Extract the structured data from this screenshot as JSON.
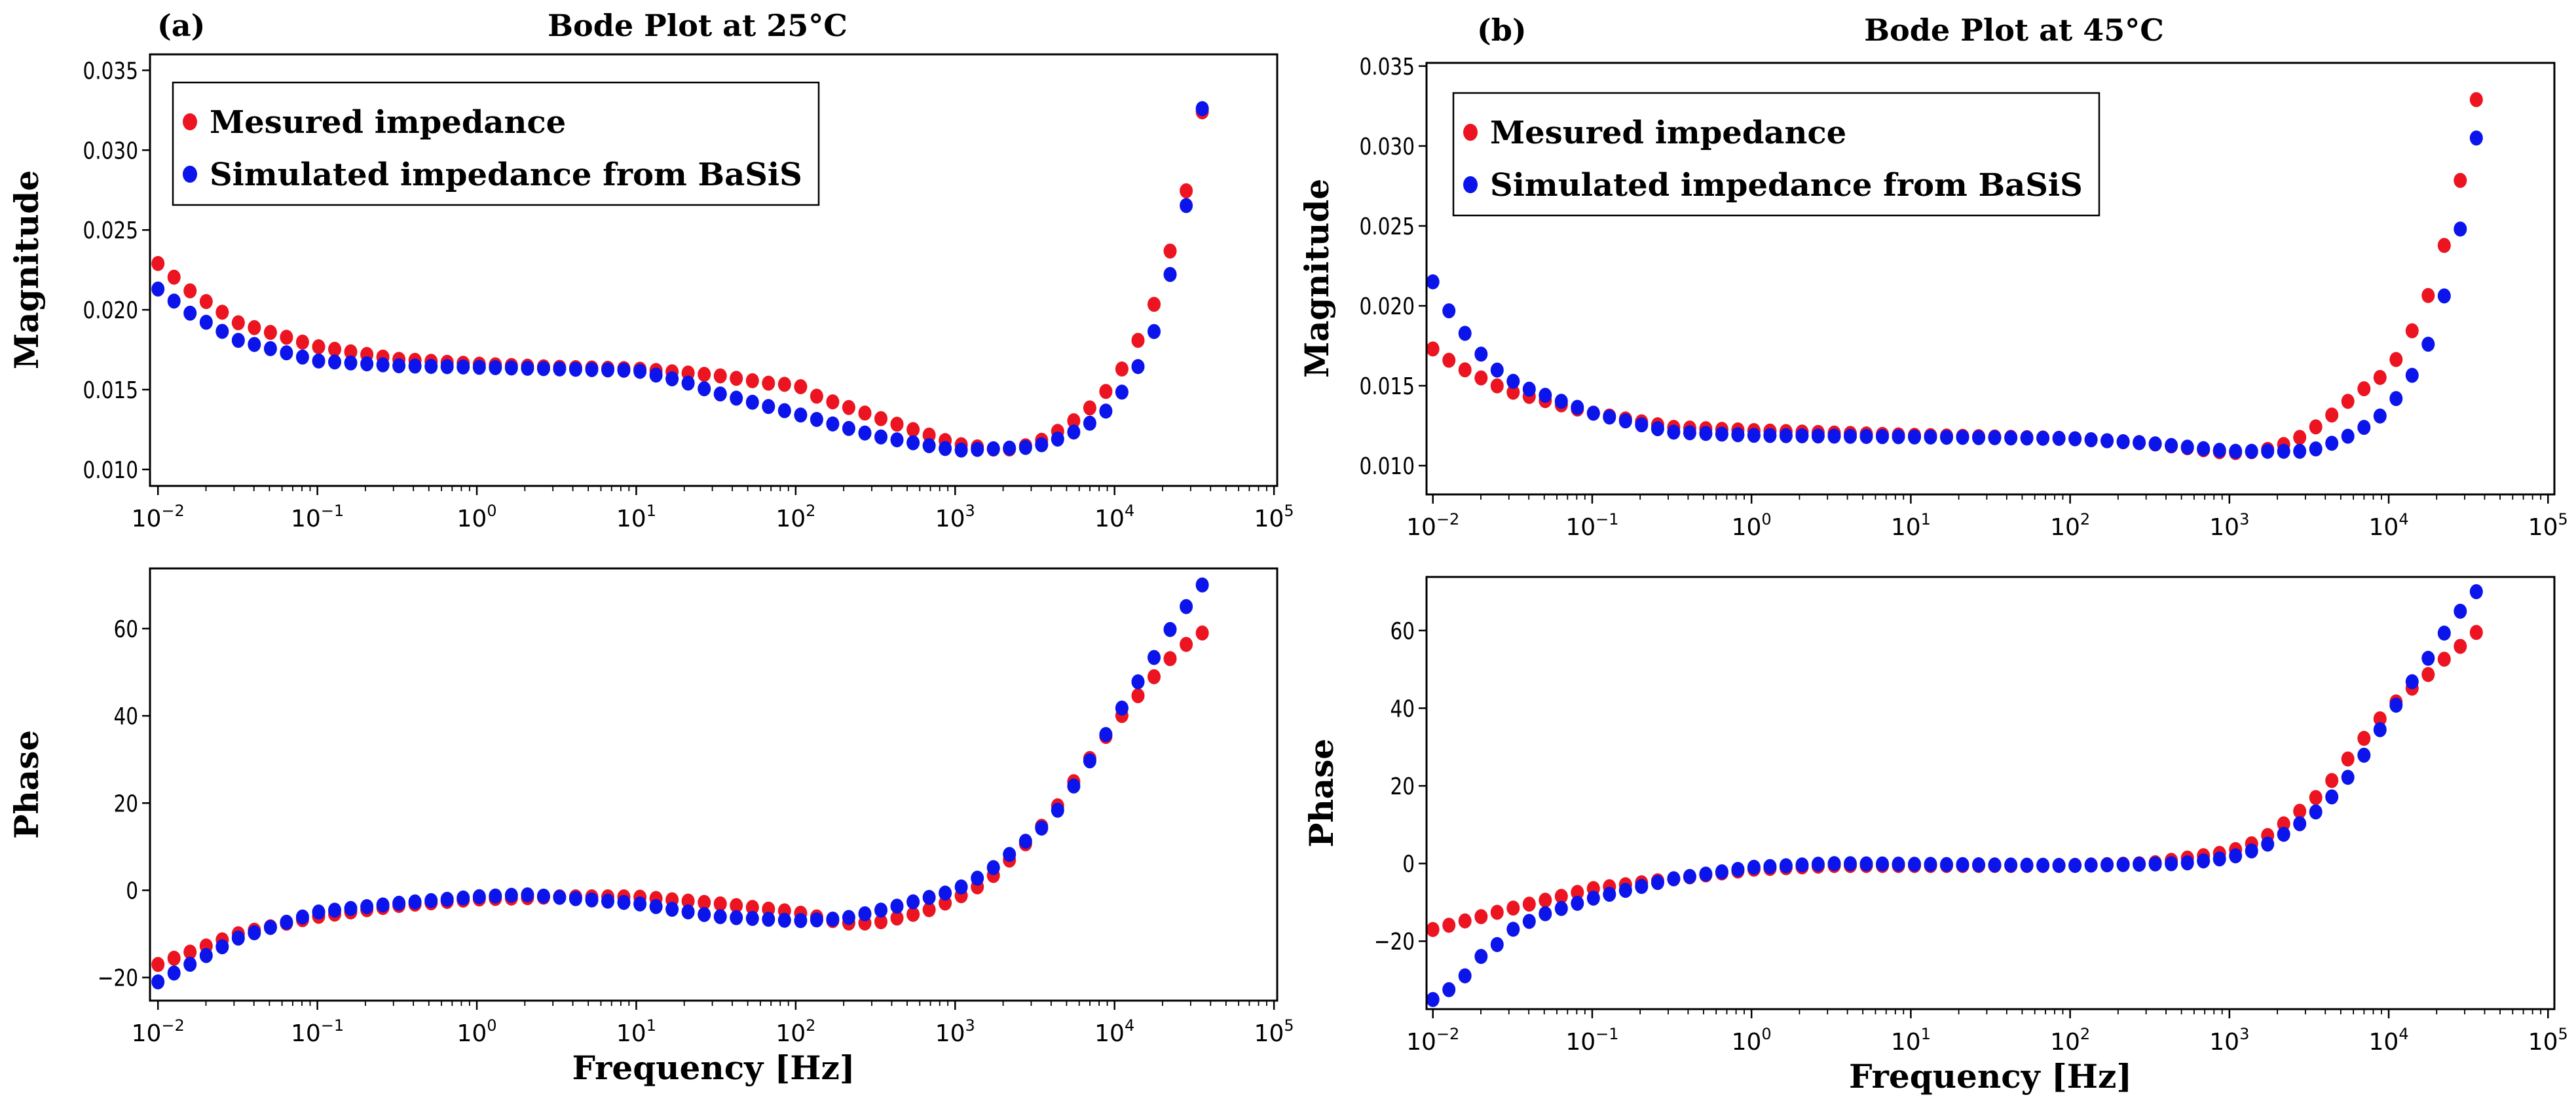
{
  "figure": {
    "panels": [
      {
        "label": "(a)",
        "title": "Bode Plot at 25°C"
      },
      {
        "label": "(b)",
        "title": "Bode Plot at 45°C"
      }
    ],
    "colors": {
      "measured": "#ec1420",
      "simulated": "#0c14ec"
    }
  },
  "chart_data": [
    {
      "type": "scatter",
      "panel": "a",
      "title": "Bode Plot at 25°C",
      "xlabel": "",
      "ylabel": "Magnitude",
      "xscale": "log",
      "xlim_log10": [
        -2.05,
        5.02
      ],
      "ylim": [
        0.00897,
        0.036
      ],
      "yticks": [
        0.01,
        0.015,
        0.02,
        0.025,
        0.03,
        0.035
      ],
      "ytick_labels": [
        "0.010",
        "0.015",
        "0.020",
        "0.025",
        "0.030",
        "0.035"
      ],
      "xtick_exponents": [
        "−2",
        "−1",
        "0",
        "1",
        "2",
        "3",
        "4",
        "5"
      ],
      "legend": {
        "placement": "upper-left",
        "entries": [
          "Mesured impedance",
          "Simulated impedance from BaSiS"
        ]
      },
      "n_points": 66,
      "x_range_log10": [
        -2,
        4.55
      ],
      "series": [
        {
          "name": "Mesured impedance",
          "color": "measured",
          "knots": [
            [
              -2,
              0.0229
            ],
            [
              -1.8,
              0.0212
            ],
            [
              -1.5,
              0.0192
            ],
            [
              -1,
              0.0177
            ],
            [
              -0.5,
              0.0169
            ],
            [
              0,
              0.0166
            ],
            [
              0.5,
              0.0164
            ],
            [
              1,
              0.0163
            ],
            [
              1.5,
              0.0159
            ],
            [
              1.9,
              0.0153
            ],
            [
              2.0,
              0.0154
            ],
            [
              2.1,
              0.0147
            ],
            [
              2.5,
              0.0133
            ],
            [
              3.0,
              0.0116
            ],
            [
              3.3,
              0.0112
            ],
            [
              3.5,
              0.0116
            ],
            [
              3.7,
              0.0127
            ],
            [
              3.9,
              0.0143
            ],
            [
              4.0,
              0.0156
            ],
            [
              4.1,
              0.0171
            ],
            [
              4.2,
              0.0192
            ],
            [
              4.3,
              0.0216
            ],
            [
              4.37,
              0.0246
            ],
            [
              4.47,
              0.0282
            ],
            [
              4.55,
              0.0324
            ]
          ]
        },
        {
          "name": "Simulated impedance from BaSiS",
          "color": "simulated",
          "knots": [
            [
              -2,
              0.0213
            ],
            [
              -1.8,
              0.0198
            ],
            [
              -1.5,
              0.0181
            ],
            [
              -1,
              0.0168
            ],
            [
              -0.5,
              0.0165
            ],
            [
              0,
              0.0164
            ],
            [
              1,
              0.0162
            ],
            [
              1.3,
              0.0155
            ],
            [
              1.5,
              0.0148
            ],
            [
              2,
              0.0135
            ],
            [
              2.5,
              0.0121
            ],
            [
              3,
              0.0112
            ],
            [
              3.5,
              0.0114
            ],
            [
              3.7,
              0.0121
            ],
            [
              3.9,
              0.0132
            ],
            [
              4.0,
              0.0142
            ],
            [
              4.1,
              0.0156
            ],
            [
              4.2,
              0.0174
            ],
            [
              4.3,
              0.02
            ],
            [
              4.37,
              0.0232
            ],
            [
              4.47,
              0.0274
            ],
            [
              4.55,
              0.0326
            ]
          ]
        }
      ]
    },
    {
      "type": "scatter",
      "panel": "a",
      "title": "",
      "xlabel": "Frequency [Hz]",
      "ylabel": "Phase",
      "xscale": "log",
      "xlim_log10": [
        -2.05,
        5.02
      ],
      "ylim": [
        -25.3,
        73.8
      ],
      "yticks": [
        -20,
        0,
        20,
        40,
        60
      ],
      "ytick_labels": [
        "−20",
        "0",
        "20",
        "40",
        "60"
      ],
      "xtick_exponents": [
        "−2",
        "−1",
        "0",
        "1",
        "2",
        "3",
        "4",
        "5"
      ],
      "n_points": 66,
      "x_range_log10": [
        -2,
        4.55
      ],
      "series": [
        {
          "name": "Mesured impedance",
          "color": "measured",
          "knots": [
            [
              -2,
              -17
            ],
            [
              -1.5,
              -10
            ],
            [
              -1,
              -6
            ],
            [
              -0.5,
              -3.5
            ],
            [
              0,
              -2
            ],
            [
              0.5,
              -1.5
            ],
            [
              1,
              -1.5
            ],
            [
              1.5,
              -3
            ],
            [
              2,
              -5
            ],
            [
              2.3,
              -7.5
            ],
            [
              2.5,
              -7.5
            ],
            [
              2.8,
              -5
            ],
            [
              3,
              -2
            ],
            [
              3.2,
              2
            ],
            [
              3.4,
              9
            ],
            [
              3.6,
              17
            ],
            [
              3.8,
              28
            ],
            [
              4.0,
              38
            ],
            [
              4.2,
              47
            ],
            [
              4.37,
              54
            ],
            [
              4.47,
              57
            ],
            [
              4.55,
              59
            ]
          ]
        },
        {
          "name": "Simulated impedance from BaSiS",
          "color": "simulated",
          "knots": [
            [
              -2,
              -21
            ],
            [
              -1.5,
              -11
            ],
            [
              -1,
              -5
            ],
            [
              -0.5,
              -3
            ],
            [
              0,
              -1.5
            ],
            [
              0.3,
              -1
            ],
            [
              1,
              -3
            ],
            [
              1.5,
              -6
            ],
            [
              2,
              -7
            ],
            [
              2.3,
              -6.5
            ],
            [
              2.6,
              -4
            ],
            [
              3,
              0
            ],
            [
              3.2,
              4
            ],
            [
              3.4,
              10
            ],
            [
              3.6,
              16
            ],
            [
              3.8,
              27
            ],
            [
              4.0,
              39
            ],
            [
              4.1,
              45
            ],
            [
              4.2,
              51
            ],
            [
              4.3,
              56
            ],
            [
              4.37,
              61.5
            ],
            [
              4.47,
              66
            ],
            [
              4.55,
              70
            ]
          ]
        }
      ]
    },
    {
      "type": "scatter",
      "panel": "b",
      "title": "Bode Plot at 45°C",
      "xlabel": "",
      "ylabel": "Magnitude",
      "xscale": "log",
      "xlim_log10": [
        -2.04,
        5.04
      ],
      "ylim": [
        0.0082,
        0.0352
      ],
      "yticks": [
        0.01,
        0.015,
        0.02,
        0.025,
        0.03,
        0.035
      ],
      "ytick_labels": [
        "0.010",
        "0.015",
        "0.020",
        "0.025",
        "0.030",
        "0.035"
      ],
      "xtick_exponents": [
        "−2",
        "−1",
        "0",
        "1",
        "2",
        "3",
        "4",
        "5"
      ],
      "legend": {
        "placement": "upper-left",
        "entries": [
          "Mesured impedance",
          "Simulated impedance from BaSiS"
        ]
      },
      "n_points": 66,
      "x_range_log10": [
        -2,
        4.55
      ],
      "series": [
        {
          "name": "Mesured impedance",
          "color": "measured",
          "knots": [
            [
              -2,
              0.0173
            ],
            [
              -1.9,
              0.0166
            ],
            [
              -1.8,
              0.016
            ],
            [
              -1.6,
              0.015
            ],
            [
              -1.5,
              0.0146
            ],
            [
              -1,
              0.0133
            ],
            [
              -0.5,
              0.0124
            ],
            [
              0,
              0.0122
            ],
            [
              1,
              0.0119
            ],
            [
              2,
              0.0117
            ],
            [
              2.5,
              0.0114
            ],
            [
              3,
              0.0108
            ],
            [
              3.2,
              0.0109
            ],
            [
              3.4,
              0.0115
            ],
            [
              3.6,
              0.0128
            ],
            [
              3.8,
              0.0145
            ],
            [
              4.0,
              0.0159
            ],
            [
              4.1,
              0.0175
            ],
            [
              4.2,
              0.0195
            ],
            [
              4.3,
              0.0219
            ],
            [
              4.38,
              0.025
            ],
            [
              4.47,
              0.0287
            ],
            [
              4.55,
              0.0329
            ]
          ]
        },
        {
          "name": "Simulated impedance from BaSiS",
          "color": "simulated",
          "knots": [
            [
              -2,
              0.0215
            ],
            [
              -1.9,
              0.0197
            ],
            [
              -1.8,
              0.0183
            ],
            [
              -1.7,
              0.017
            ],
            [
              -1.6,
              0.016
            ],
            [
              -1.5,
              0.0153
            ],
            [
              -1.4,
              0.0148
            ],
            [
              -1,
              0.0133
            ],
            [
              -0.5,
              0.0121
            ],
            [
              0,
              0.0119
            ],
            [
              1,
              0.0118
            ],
            [
              2,
              0.0117
            ],
            [
              2.5,
              0.0114
            ],
            [
              3,
              0.0109
            ],
            [
              3.5,
              0.0109
            ],
            [
              3.7,
              0.0116
            ],
            [
              3.9,
              0.0127
            ],
            [
              4.0,
              0.0136
            ],
            [
              4.1,
              0.0149
            ],
            [
              4.2,
              0.0165
            ],
            [
              4.3,
              0.0188
            ],
            [
              4.38,
              0.0218
            ],
            [
              4.47,
              0.0257
            ],
            [
              4.55,
              0.0305
            ]
          ]
        }
      ]
    },
    {
      "type": "scatter",
      "panel": "b",
      "title": "",
      "xlabel": "Frequency [Hz]",
      "ylabel": "Phase",
      "xscale": "log",
      "xlim_log10": [
        -2.04,
        5.04
      ],
      "ylim": [
        -37.5,
        73.8
      ],
      "yticks": [
        -20,
        0,
        20,
        40,
        60
      ],
      "ytick_labels": [
        "−20",
        "0",
        "20",
        "40",
        "60"
      ],
      "xtick_exponents": [
        "−2",
        "−1",
        "0",
        "1",
        "2",
        "3",
        "4",
        "5"
      ],
      "n_points": 66,
      "x_range_log10": [
        -2,
        4.55
      ],
      "series": [
        {
          "name": "Mesured impedance",
          "color": "measured",
          "knots": [
            [
              -2,
              -17
            ],
            [
              -1.5,
              -11.5
            ],
            [
              -1,
              -6.5
            ],
            [
              -0.5,
              -4
            ],
            [
              0,
              -1.5
            ],
            [
              0.5,
              -0.5
            ],
            [
              1,
              -0.5
            ],
            [
              2,
              -0.5
            ],
            [
              2.5,
              0
            ],
            [
              3,
              3
            ],
            [
              3.2,
              6
            ],
            [
              3.4,
              12
            ],
            [
              3.6,
              19
            ],
            [
              3.8,
              30
            ],
            [
              4.0,
              40
            ],
            [
              4.2,
              47
            ],
            [
              4.3,
              50.5
            ],
            [
              4.38,
              54
            ],
            [
              4.47,
              56.5
            ],
            [
              4.55,
              59.5
            ]
          ]
        },
        {
          "name": "Simulated impedance from BaSiS",
          "color": "simulated",
          "knots": [
            [
              -2,
              -35
            ],
            [
              -1.9,
              -32.5
            ],
            [
              -1.8,
              -29
            ],
            [
              -1.7,
              -24
            ],
            [
              -1.6,
              -21
            ],
            [
              -1.5,
              -17
            ],
            [
              -1.3,
              -13
            ],
            [
              -1,
              -9
            ],
            [
              -0.5,
              -4
            ],
            [
              0,
              -1
            ],
            [
              0.5,
              0
            ],
            [
              2,
              -0.5
            ],
            [
              2.7,
              0
            ],
            [
              3,
              1.5
            ],
            [
              3.2,
              4
            ],
            [
              3.4,
              9
            ],
            [
              3.6,
              15
            ],
            [
              3.8,
              25
            ],
            [
              4.0,
              38
            ],
            [
              4.1,
              44
            ],
            [
              4.2,
              50
            ],
            [
              4.3,
              56
            ],
            [
              4.38,
              61.5
            ],
            [
              4.47,
              66
            ],
            [
              4.55,
              70
            ]
          ]
        }
      ]
    }
  ]
}
